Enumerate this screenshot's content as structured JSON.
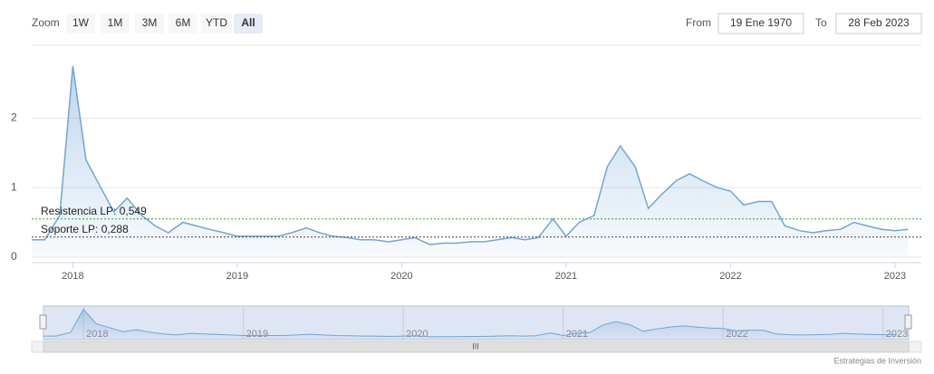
{
  "range_selector": {
    "label": "Zoom",
    "buttons": [
      "1W",
      "1M",
      "3M",
      "6M",
      "YTD",
      "All"
    ],
    "selected": 5,
    "from_label": "From",
    "from": "19 Ene 1970",
    "to_label": "To",
    "to": "28 Feb 2023"
  },
  "credits": "Estrategias de Inversión",
  "chart_data": {
    "type": "area",
    "color": "#6fa6d6",
    "grid": true,
    "x": [
      2017.75,
      2017.83,
      2017.92,
      2018.0,
      2018.08,
      2018.17,
      2018.25,
      2018.33,
      2018.42,
      2018.5,
      2018.58,
      2018.67,
      2018.75,
      2018.83,
      2018.92,
      2019.0,
      2019.08,
      2019.17,
      2019.25,
      2019.33,
      2019.42,
      2019.5,
      2019.58,
      2019.67,
      2019.75,
      2019.83,
      2019.92,
      2020.0,
      2020.08,
      2020.17,
      2020.25,
      2020.33,
      2020.42,
      2020.5,
      2020.58,
      2020.67,
      2020.75,
      2020.83,
      2020.92,
      2021.0,
      2021.08,
      2021.17,
      2021.25,
      2021.33,
      2021.42,
      2021.5,
      2021.58,
      2021.67,
      2021.75,
      2021.83,
      2021.92,
      2022.0,
      2022.08,
      2022.17,
      2022.25,
      2022.33,
      2022.42,
      2022.5,
      2022.58,
      2022.67,
      2022.75,
      2022.83,
      2022.92,
      2023.0,
      2023.08
    ],
    "values": [
      0.25,
      0.25,
      0.6,
      2.75,
      1.4,
      1.0,
      0.65,
      0.85,
      0.6,
      0.45,
      0.35,
      0.5,
      0.45,
      0.4,
      0.35,
      0.3,
      0.3,
      0.3,
      0.3,
      0.35,
      0.42,
      0.35,
      0.3,
      0.28,
      0.25,
      0.25,
      0.22,
      0.25,
      0.28,
      0.18,
      0.2,
      0.2,
      0.22,
      0.22,
      0.25,
      0.28,
      0.25,
      0.28,
      0.55,
      0.3,
      0.5,
      0.6,
      1.3,
      1.6,
      1.3,
      0.7,
      0.9,
      1.1,
      1.2,
      1.1,
      1.0,
      0.95,
      0.75,
      0.8,
      0.8,
      0.45,
      0.38,
      0.35,
      0.38,
      0.4,
      0.5,
      0.45,
      0.4,
      0.38,
      0.4
    ],
    "xlim": [
      2017.75,
      2023.16
    ],
    "xticks": [
      2018,
      2019,
      2020,
      2021,
      2022,
      2023
    ],
    "ylim": [
      -0.08,
      3.05
    ],
    "yticks": [
      0,
      1,
      2
    ],
    "plot_lines": [
      {
        "value": 0.549,
        "label": "Resistencia LP: 0,549",
        "color": "#3c9a3c"
      },
      {
        "value": 0.288,
        "label": "Soporte LP: 0,288",
        "color": "#444444"
      }
    ]
  }
}
